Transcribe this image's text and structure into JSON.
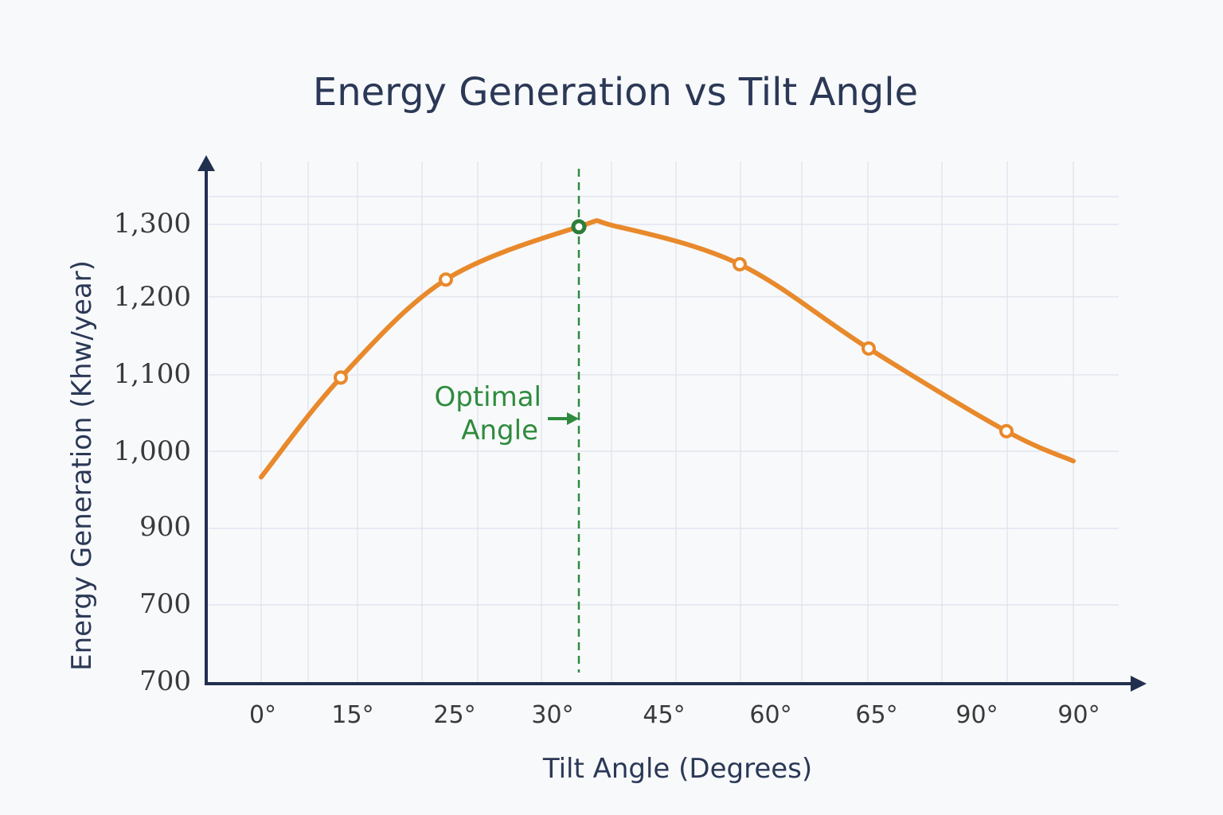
{
  "chart_data": {
    "type": "line",
    "title": "Energy Generation vs Tilt Angle",
    "xlabel": "Tilt Angle (Degrees)",
    "ylabel": "Energy Generation (Khw/year)",
    "x_tick_labels": [
      "0°",
      "15°",
      "25°",
      "30°",
      "45°",
      "60°",
      "65°",
      "90°",
      "90°"
    ],
    "y_tick_labels": [
      "1,300",
      "1,200",
      "1,100",
      "1,000",
      "900",
      "700",
      "700"
    ],
    "grid": true,
    "series": [
      {
        "color": "#e8892b",
        "points": [
          {
            "x": 0,
            "y": 970,
            "marker": false
          },
          {
            "x": 13,
            "y": 1100,
            "marker": true
          },
          {
            "x": 24,
            "y": 1228,
            "marker": true
          },
          {
            "x": 33,
            "y": 1297,
            "marker": true,
            "highlight": true
          },
          {
            "x": 57,
            "y": 1248,
            "marker": true
          },
          {
            "x": 65,
            "y": 1138,
            "marker": true
          },
          {
            "x": 90,
            "y": 1030,
            "marker": true
          },
          {
            "x": 90,
            "y": 991,
            "marker": false
          }
        ]
      }
    ],
    "annotation": {
      "lines": [
        "Optimal",
        "Angle"
      ],
      "color": "#2e8b3e",
      "x": 33
    }
  }
}
